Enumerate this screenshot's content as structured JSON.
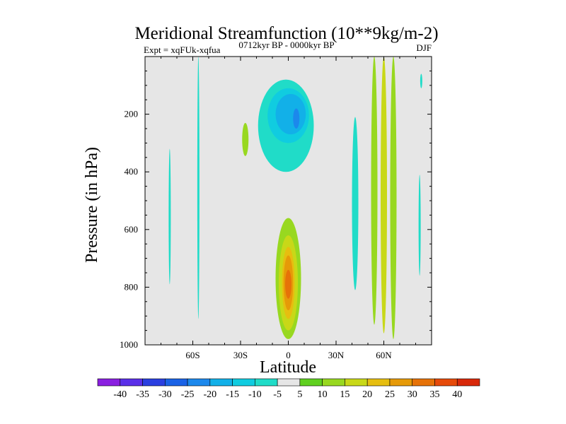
{
  "chart_data": {
    "type": "contour",
    "title": "Meridional Streamfunction (10**9kg/m-2)",
    "subtitle_left": "Expt = xqFUk-xqfua",
    "subtitle_center": "0712kyr BP - 0000kyr BP",
    "subtitle_right": "DJF",
    "xlabel": "Latitude",
    "ylabel": "Pressure (in hPa)",
    "xlim": [
      -90,
      90
    ],
    "ylim": [
      0,
      1000
    ],
    "y_inverted": true,
    "x_ticks": [
      {
        "value": -60,
        "label": "60S"
      },
      {
        "value": -30,
        "label": "30S"
      },
      {
        "value": 0,
        "label": "0"
      },
      {
        "value": 30,
        "label": "30N"
      },
      {
        "value": 60,
        "label": "60N"
      }
    ],
    "y_ticks": [
      {
        "value": 200,
        "label": "200"
      },
      {
        "value": 400,
        "label": "400"
      },
      {
        "value": 600,
        "label": "600"
      },
      {
        "value": 800,
        "label": "800"
      },
      {
        "value": 1000,
        "label": "1000"
      }
    ],
    "background_color": "#e6e6e6",
    "colorbar": {
      "levels": [
        "-40",
        "-35",
        "-30",
        "-25",
        "-20",
        "-15",
        "-10",
        "-5",
        "5",
        "10",
        "15",
        "20",
        "25",
        "30",
        "35",
        "40"
      ],
      "colors": [
        "#8a1fe0",
        "#5a2fe8",
        "#2a3fe0",
        "#1a62e6",
        "#1c88ec",
        "#12b0e8",
        "#10cce0",
        "#20dcc8",
        "#e6e6e6",
        "#60d020",
        "#98d820",
        "#c8d818",
        "#e6be10",
        "#e69a08",
        "#e67208",
        "#e64a0a",
        "#d8280a"
      ]
    },
    "contour_regions": [
      {
        "value": -10,
        "description": "narrow band",
        "lat": [
          -57,
          -56
        ],
        "p": [
          0,
          910
        ]
      },
      {
        "value": -10,
        "description": "narrow band",
        "lat": [
          -75,
          -74
        ],
        "p": [
          320,
          790
        ]
      },
      {
        "value": 10,
        "description": "small positive",
        "lat": [
          -29,
          -25
        ],
        "p": [
          230,
          345
        ]
      },
      {
        "value": -10,
        "description": "negative cell",
        "lat": [
          -19,
          16
        ],
        "p": [
          80,
          400
        ]
      },
      {
        "value": -15,
        "description": "negative cell",
        "lat": [
          -13,
          13
        ],
        "p": [
          110,
          300
        ]
      },
      {
        "value": -20,
        "description": "negative cell",
        "lat": [
          -8,
          11
        ],
        "p": [
          130,
          270
        ]
      },
      {
        "value": -25,
        "description": "negative core",
        "lat": [
          3,
          7
        ],
        "p": [
          180,
          250
        ]
      },
      {
        "value": 10,
        "description": "positive lower cell",
        "lat": [
          -8,
          8
        ],
        "p": [
          560,
          980
        ]
      },
      {
        "value": 15,
        "description": "positive lower cell",
        "lat": [
          -6,
          6
        ],
        "p": [
          620,
          950
        ]
      },
      {
        "value": 20,
        "description": "positive lower cell",
        "lat": [
          -4,
          4
        ],
        "p": [
          660,
          910
        ]
      },
      {
        "value": 25,
        "description": "positive core",
        "lat": [
          -3,
          3
        ],
        "p": [
          690,
          880
        ]
      },
      {
        "value": 30,
        "description": "positive core",
        "lat": [
          -2,
          2
        ],
        "p": [
          740,
          840
        ]
      },
      {
        "value": -10,
        "description": "narrow band",
        "lat": [
          40,
          44
        ],
        "p": [
          210,
          810
        ]
      },
      {
        "value": 10,
        "description": "positive band",
        "lat": [
          52,
          56
        ],
        "p": [
          0,
          930
        ]
      },
      {
        "value": 15,
        "description": "positive band",
        "lat": [
          58,
          62
        ],
        "p": [
          0,
          960
        ]
      },
      {
        "value": 10,
        "description": "positive band",
        "lat": [
          64,
          68
        ],
        "p": [
          0,
          980
        ]
      },
      {
        "value": -10,
        "description": "narrow band",
        "lat": [
          83,
          84
        ],
        "p": [
          60,
          110
        ]
      },
      {
        "value": -10,
        "description": "narrow band",
        "lat": [
          82,
          83
        ],
        "p": [
          410,
          760
        ]
      }
    ]
  }
}
